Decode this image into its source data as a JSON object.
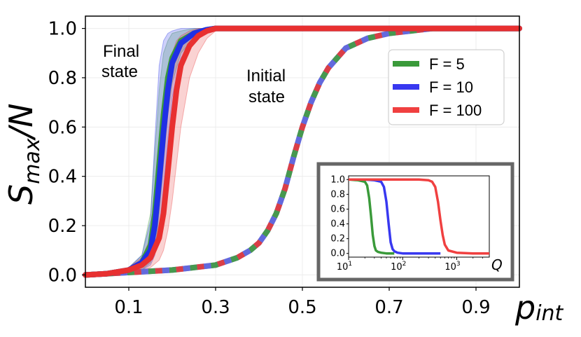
{
  "chart_data": {
    "type": "line",
    "title": "",
    "xlabel": "p_int",
    "xlabel_main": "p",
    "xlabel_sub": "int",
    "ylabel": "S_max/N",
    "ylabel_main": "S",
    "ylabel_sub": "max",
    "ylabel_tail": "/N",
    "xlim": [
      0.0,
      1.0
    ],
    "ylim": [
      -0.05,
      1.05
    ],
    "xticks": [
      0.1,
      0.3,
      0.5,
      0.7,
      0.9
    ],
    "xtick_labels": [
      "0.1",
      "0.3",
      "0.5",
      "0.7",
      "0.9"
    ],
    "yticks": [
      0.0,
      0.2,
      0.4,
      0.6,
      0.8,
      1.0
    ],
    "ytick_labels": [
      "0.0",
      "0.2",
      "0.4",
      "0.6",
      "0.8",
      "1.0"
    ],
    "grid": true,
    "legend_position": "top-right",
    "annotations": {
      "final_line1": "Final",
      "final_line2": "state",
      "initial_line1": "Initial",
      "initial_line2": "state"
    },
    "series": [
      {
        "name": "F = 5",
        "group": "final",
        "color": "#3a9a3a",
        "x": [
          0.0,
          0.05,
          0.1,
          0.13,
          0.15,
          0.16,
          0.17,
          0.18,
          0.19,
          0.2,
          0.22,
          0.25,
          0.28,
          0.3,
          0.4,
          1.0
        ],
        "y": [
          0.0,
          0.005,
          0.02,
          0.05,
          0.12,
          0.25,
          0.45,
          0.65,
          0.8,
          0.88,
          0.95,
          0.98,
          0.995,
          1.0,
          1.0,
          1.0
        ],
        "band_lower": [
          0.0,
          0.0,
          0.01,
          0.02,
          0.05,
          0.1,
          0.25,
          0.45,
          0.65,
          0.78,
          0.9,
          0.96,
          0.99,
          1.0,
          1.0,
          1.0
        ],
        "band_upper": [
          0.0,
          0.01,
          0.03,
          0.08,
          0.25,
          0.5,
          0.75,
          0.9,
          0.95,
          0.98,
          0.99,
          1.0,
          1.0,
          1.0,
          1.0,
          1.0
        ]
      },
      {
        "name": "F = 10",
        "group": "final",
        "color": "#1f2fe6",
        "x": [
          0.0,
          0.05,
          0.1,
          0.13,
          0.15,
          0.16,
          0.17,
          0.18,
          0.19,
          0.2,
          0.22,
          0.25,
          0.28,
          0.3,
          0.4,
          1.0
        ],
        "y": [
          0.0,
          0.005,
          0.02,
          0.05,
          0.1,
          0.2,
          0.38,
          0.58,
          0.75,
          0.86,
          0.94,
          0.98,
          0.995,
          1.0,
          1.0,
          1.0
        ],
        "band_lower": [
          0.0,
          0.0,
          0.01,
          0.02,
          0.04,
          0.08,
          0.18,
          0.35,
          0.55,
          0.72,
          0.88,
          0.95,
          0.99,
          1.0,
          1.0,
          1.0
        ],
        "band_upper": [
          0.0,
          0.01,
          0.03,
          0.08,
          0.22,
          0.55,
          0.85,
          0.95,
          0.98,
          0.99,
          1.0,
          1.0,
          1.0,
          1.0,
          1.0,
          1.0
        ]
      },
      {
        "name": "F = 100",
        "group": "final",
        "color": "#e83030",
        "x": [
          0.0,
          0.05,
          0.1,
          0.13,
          0.15,
          0.17,
          0.18,
          0.19,
          0.2,
          0.21,
          0.22,
          0.24,
          0.26,
          0.28,
          0.3,
          0.4,
          1.0
        ],
        "y": [
          0.0,
          0.005,
          0.02,
          0.04,
          0.07,
          0.15,
          0.25,
          0.42,
          0.6,
          0.75,
          0.85,
          0.93,
          0.97,
          0.99,
          1.0,
          1.0,
          1.0
        ],
        "band_lower": [
          0.0,
          0.0,
          0.01,
          0.02,
          0.03,
          0.06,
          0.1,
          0.18,
          0.3,
          0.45,
          0.6,
          0.8,
          0.9,
          0.96,
          0.99,
          1.0,
          1.0
        ],
        "band_upper": [
          0.0,
          0.01,
          0.03,
          0.07,
          0.15,
          0.45,
          0.65,
          0.8,
          0.9,
          0.95,
          0.97,
          0.99,
          1.0,
          1.0,
          1.0,
          1.0,
          1.0
        ]
      },
      {
        "name": "Initial state (all F)",
        "group": "initial",
        "color": "#8a8cc8",
        "dash_colors": [
          "#3a9a3a",
          "#e83030",
          "#5a63e0"
        ],
        "x": [
          0.0,
          0.1,
          0.2,
          0.3,
          0.35,
          0.38,
          0.4,
          0.42,
          0.44,
          0.46,
          0.48,
          0.5,
          0.52,
          0.54,
          0.56,
          0.58,
          0.6,
          0.65,
          0.7,
          0.75,
          0.8,
          0.9,
          1.0
        ],
        "y": [
          0.0,
          0.01,
          0.02,
          0.04,
          0.07,
          0.1,
          0.13,
          0.18,
          0.25,
          0.35,
          0.48,
          0.6,
          0.7,
          0.78,
          0.84,
          0.88,
          0.92,
          0.96,
          0.98,
          0.99,
          1.0,
          1.0,
          1.0
        ]
      }
    ],
    "legend": [
      {
        "label": "F = 5",
        "color": "#3a9a3a"
      },
      {
        "label": "F = 10",
        "color": "#3838f0"
      },
      {
        "label": "F = 100",
        "color": "#f04040"
      }
    ],
    "inset": {
      "type": "line",
      "xlabel": "Q",
      "xscale": "log",
      "xlim": [
        10,
        4000
      ],
      "ylim": [
        -0.05,
        1.05
      ],
      "yticks": [
        0.0,
        0.2,
        0.4,
        0.6,
        0.8,
        1.0
      ],
      "ytick_labels": [
        "0.0",
        "0.2",
        "0.4",
        "0.6",
        "0.8",
        "1.0"
      ],
      "xticks": [
        10,
        100,
        1000
      ],
      "xtick_bases": [
        "10",
        "10",
        "10"
      ],
      "xtick_exps": [
        "1",
        "2",
        "3"
      ],
      "series": [
        {
          "name": "F = 5",
          "color": "#3a9a3a",
          "x": [
            10,
            15,
            20,
            22,
            24,
            26,
            28,
            30,
            32,
            35,
            40,
            50,
            70
          ],
          "y": [
            1.0,
            0.99,
            0.97,
            0.92,
            0.75,
            0.5,
            0.25,
            0.1,
            0.04,
            0.02,
            0.01,
            0.0,
            0.0
          ]
        },
        {
          "name": "F = 10",
          "color": "#3838f0",
          "x": [
            10,
            20,
            30,
            40,
            45,
            50,
            55,
            60,
            65,
            70,
            80,
            100,
            200,
            500
          ],
          "y": [
            1.0,
            1.0,
            0.99,
            0.97,
            0.9,
            0.7,
            0.4,
            0.15,
            0.06,
            0.03,
            0.01,
            0.0,
            0.0,
            0.0
          ]
        },
        {
          "name": "F = 100",
          "color": "#f04040",
          "x": [
            10,
            50,
            100,
            200,
            300,
            350,
            400,
            450,
            500,
            550,
            600,
            700,
            1000,
            2000,
            4000
          ],
          "y": [
            1.0,
            1.0,
            1.0,
            1.0,
            0.99,
            0.97,
            0.9,
            0.7,
            0.45,
            0.25,
            0.12,
            0.04,
            0.01,
            0.0,
            0.0
          ]
        }
      ]
    }
  }
}
